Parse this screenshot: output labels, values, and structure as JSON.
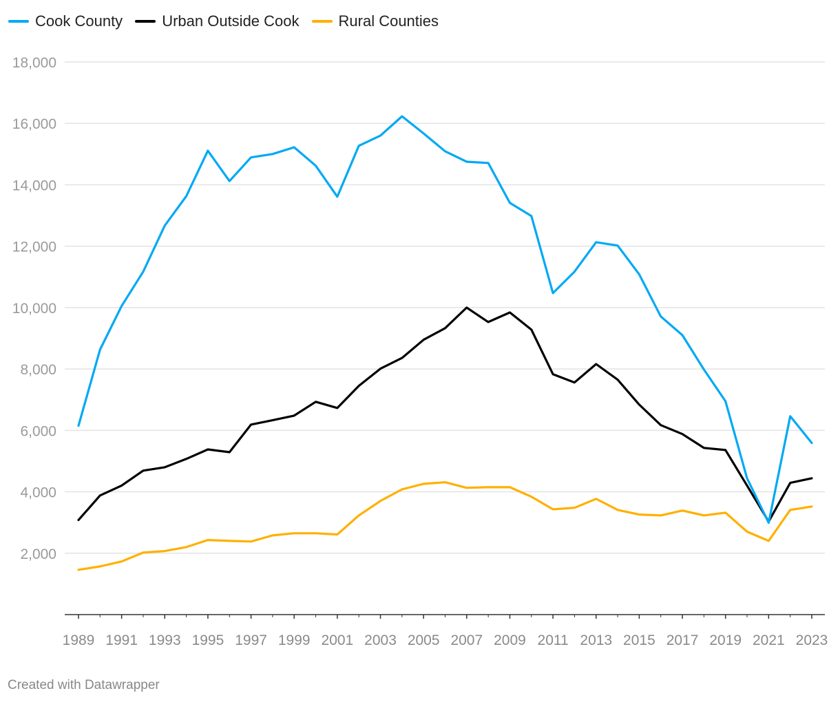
{
  "chart_data": {
    "type": "line",
    "title": "",
    "xlabel": "",
    "ylabel": "",
    "ylim": [
      0,
      18000
    ],
    "yticks": [
      2000,
      4000,
      6000,
      8000,
      10000,
      12000,
      14000,
      16000,
      18000
    ],
    "ytick_labels": [
      "2,000",
      "4,000",
      "6,000",
      "8,000",
      "10,000",
      "12,000",
      "14,000",
      "16,000",
      "18,000"
    ],
    "xticks": [
      1989,
      1991,
      1993,
      1995,
      1997,
      1999,
      2001,
      2003,
      2005,
      2007,
      2009,
      2011,
      2013,
      2015,
      2017,
      2019,
      2021,
      2023
    ],
    "xtick_labels": [
      "1989",
      "1991",
      "1993",
      "1995",
      "1997",
      "1999",
      "2001",
      "2003",
      "2005",
      "2007",
      "2009",
      "2011",
      "2013",
      "2015",
      "2017",
      "2019",
      "2021",
      "2023"
    ],
    "grid": true,
    "legend_position": "top-left",
    "x": [
      1989,
      1990,
      1991,
      1992,
      1993,
      1994,
      1995,
      1996,
      1997,
      1998,
      1999,
      2000,
      2001,
      2002,
      2003,
      2004,
      2005,
      2006,
      2007,
      2008,
      2009,
      2010,
      2011,
      2012,
      2013,
      2014,
      2015,
      2016,
      2017,
      2018,
      2019,
      2020,
      2021,
      2022,
      2023
    ],
    "series": [
      {
        "name": "Cook County",
        "color": "#00a9f4",
        "values": [
          6150,
          8630,
          10050,
          11170,
          12670,
          13630,
          15110,
          14120,
          14890,
          15000,
          15220,
          14620,
          13610,
          15270,
          15600,
          16230,
          15670,
          15090,
          14750,
          14710,
          13410,
          12980,
          10470,
          11170,
          12130,
          12020,
          11080,
          9710,
          9100,
          7980,
          6950,
          4440,
          2990,
          6460,
          5590
        ]
      },
      {
        "name": "Urban Outside Cook",
        "color": "#000000",
        "values": [
          3080,
          3880,
          4200,
          4690,
          4800,
          5070,
          5380,
          5290,
          6190,
          6330,
          6480,
          6930,
          6730,
          7450,
          8010,
          8360,
          8950,
          9330,
          10000,
          9530,
          9840,
          9280,
          7830,
          7560,
          8160,
          7650,
          6840,
          6170,
          5880,
          5430,
          5360,
          4200,
          3030,
          4290,
          4440
        ]
      },
      {
        "name": "Rural Counties",
        "color": "#ffb000",
        "values": [
          1460,
          1570,
          1730,
          2020,
          2070,
          2200,
          2430,
          2400,
          2380,
          2580,
          2650,
          2650,
          2610,
          3230,
          3700,
          4080,
          4260,
          4310,
          4130,
          4150,
          4150,
          3840,
          3430,
          3480,
          3770,
          3410,
          3260,
          3230,
          3390,
          3230,
          3320,
          2700,
          2400,
          3410,
          3520
        ]
      }
    ]
  },
  "footer": {
    "credit": "Created with Datawrapper"
  }
}
